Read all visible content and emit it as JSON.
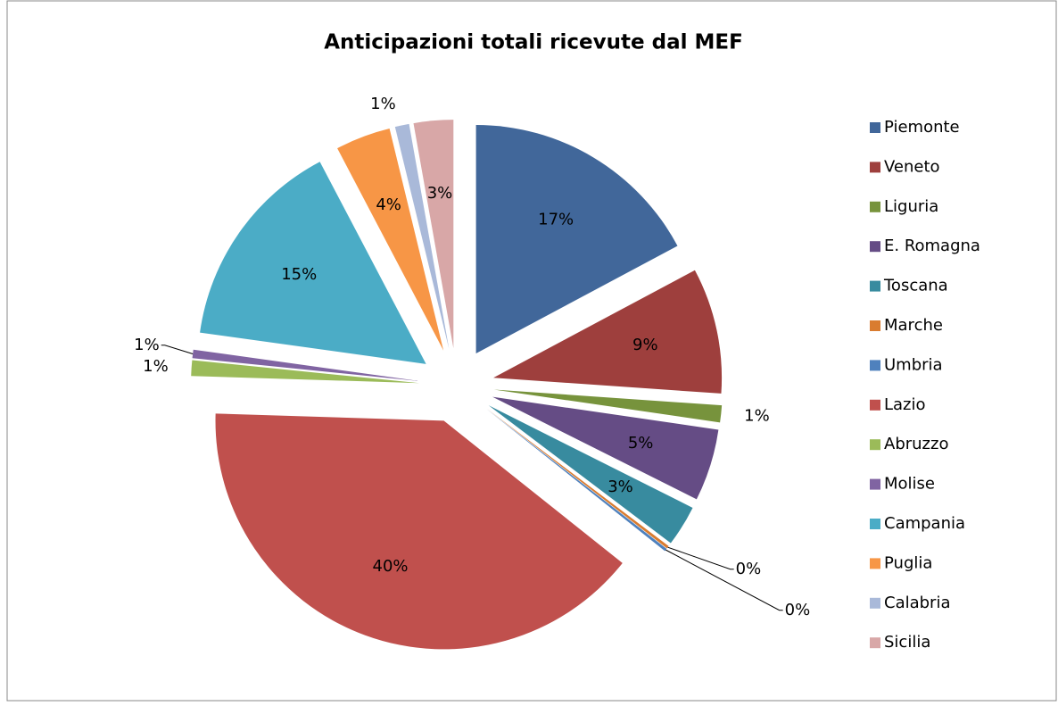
{
  "chart_data": {
    "type": "pie",
    "title": "Anticipazioni totali ricevute dal MEF",
    "categories": [
      "Piemonte",
      "Veneto",
      "Liguria",
      "E. Romagna",
      "Toscana",
      "Marche",
      "Umbria",
      "Lazio",
      "Abruzzo",
      "Molise",
      "Campania",
      "Puglia",
      "Calabria",
      "Sicilia"
    ],
    "values": [
      17.2,
      8.9,
      1.2,
      5.1,
      2.9,
      0.2,
      0.2,
      39.8,
      1.1,
      0.6,
      15.1,
      3.9,
      1.0,
      2.8
    ],
    "value_labels": [
      "17%",
      "9%",
      "1%",
      "5%",
      "3%",
      "0%",
      "0%",
      "40%",
      "1%",
      "1%",
      "15%",
      "4%",
      "1%",
      "3%"
    ],
    "colors": [
      "#41679A",
      "#9E3F3D",
      "#77933C",
      "#654C85",
      "#388B9F",
      "#D97C30",
      "#4F81BD",
      "#C0504D",
      "#9BBB59",
      "#8064A2",
      "#4BACC6",
      "#F79646",
      "#A9B9D9",
      "#D8A7A7"
    ],
    "legend": "right"
  }
}
